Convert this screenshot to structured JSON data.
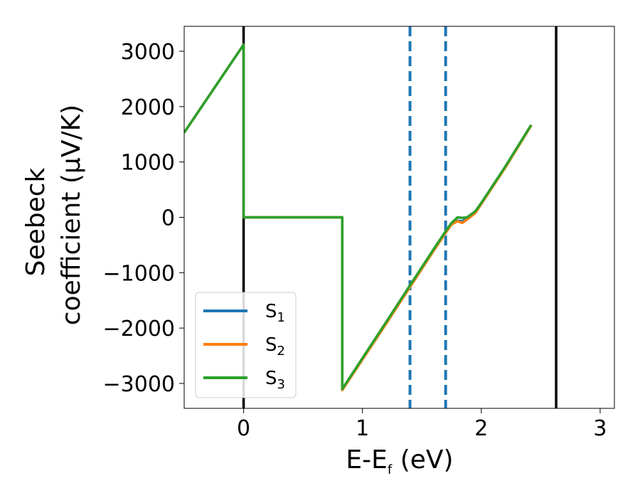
{
  "chart_data": {
    "type": "line",
    "title": "",
    "xlabel": {
      "base": "E-E",
      "sub": "f",
      "rest": " (eV)"
    },
    "ylabel": {
      "line1": "Seebeck",
      "line2": "coefficient  (μV/K)"
    },
    "xlim": [
      -0.5,
      3.12
    ],
    "ylim": [
      -3450,
      3450
    ],
    "xticks": [
      {
        "value": 0,
        "label": "0"
      },
      {
        "value": 1,
        "label": "1"
      },
      {
        "value": 2,
        "label": "2"
      },
      {
        "value": 3,
        "label": "3"
      }
    ],
    "yticks": [
      {
        "value": 3000,
        "label": "3000"
      },
      {
        "value": 2000,
        "label": "2000"
      },
      {
        "value": 1000,
        "label": "1000"
      },
      {
        "value": 0,
        "label": "0"
      },
      {
        "value": -1000,
        "label": "−1000"
      },
      {
        "value": -2000,
        "label": "−2000"
      },
      {
        "value": -3000,
        "label": "−3000"
      }
    ],
    "vlines": [
      {
        "x": 0.0,
        "style": "solid",
        "color": "#000000"
      },
      {
        "x": 2.63,
        "style": "solid",
        "color": "#000000"
      },
      {
        "x": 1.4,
        "style": "dashed",
        "color": "#1f77b4"
      },
      {
        "x": 1.7,
        "style": "dashed",
        "color": "#1f77b4"
      }
    ],
    "series": [
      {
        "name": "S",
        "sub": "1",
        "color": "#1f77b4",
        "points": [
          [
            -0.5,
            1530
          ],
          [
            0.0,
            3120
          ],
          [
            0.0,
            0
          ],
          [
            0.83,
            0
          ],
          [
            0.83,
            -3110
          ],
          [
            1.2,
            -1900
          ],
          [
            1.4,
            -1240
          ],
          [
            1.6,
            -580
          ],
          [
            1.7,
            -260
          ],
          [
            1.75,
            -120
          ],
          [
            1.8,
            -60
          ],
          [
            1.84,
            -70
          ],
          [
            1.88,
            -20
          ],
          [
            1.95,
            100
          ],
          [
            2.0,
            250
          ],
          [
            2.2,
            900
          ],
          [
            2.42,
            1660
          ]
        ]
      },
      {
        "name": "S",
        "sub": "2",
        "color": "#ff7f0e",
        "points": [
          [
            -0.5,
            1530
          ],
          [
            0.0,
            3120
          ],
          [
            0.0,
            0
          ],
          [
            0.83,
            0
          ],
          [
            0.83,
            -3120
          ],
          [
            1.2,
            -1920
          ],
          [
            1.4,
            -1260
          ],
          [
            1.6,
            -600
          ],
          [
            1.7,
            -280
          ],
          [
            1.75,
            -130
          ],
          [
            1.8,
            -70
          ],
          [
            1.84,
            -100
          ],
          [
            1.88,
            -40
          ],
          [
            1.95,
            80
          ],
          [
            2.0,
            240
          ],
          [
            2.2,
            890
          ],
          [
            2.42,
            1660
          ]
        ]
      },
      {
        "name": "S",
        "sub": "3",
        "color": "#2ca02c",
        "points": [
          [
            -0.5,
            1530
          ],
          [
            0.0,
            3120
          ],
          [
            0.0,
            0
          ],
          [
            0.83,
            0
          ],
          [
            0.83,
            -3100
          ],
          [
            1.2,
            -1890
          ],
          [
            1.4,
            -1230
          ],
          [
            1.6,
            -570
          ],
          [
            1.7,
            -250
          ],
          [
            1.75,
            -100
          ],
          [
            1.8,
            0
          ],
          [
            1.84,
            -10
          ],
          [
            1.88,
            0
          ],
          [
            1.95,
            110
          ],
          [
            2.0,
            260
          ],
          [
            2.2,
            910
          ],
          [
            2.42,
            1670
          ]
        ]
      }
    ],
    "legend": {
      "position": "lower-left"
    },
    "grid": false
  }
}
